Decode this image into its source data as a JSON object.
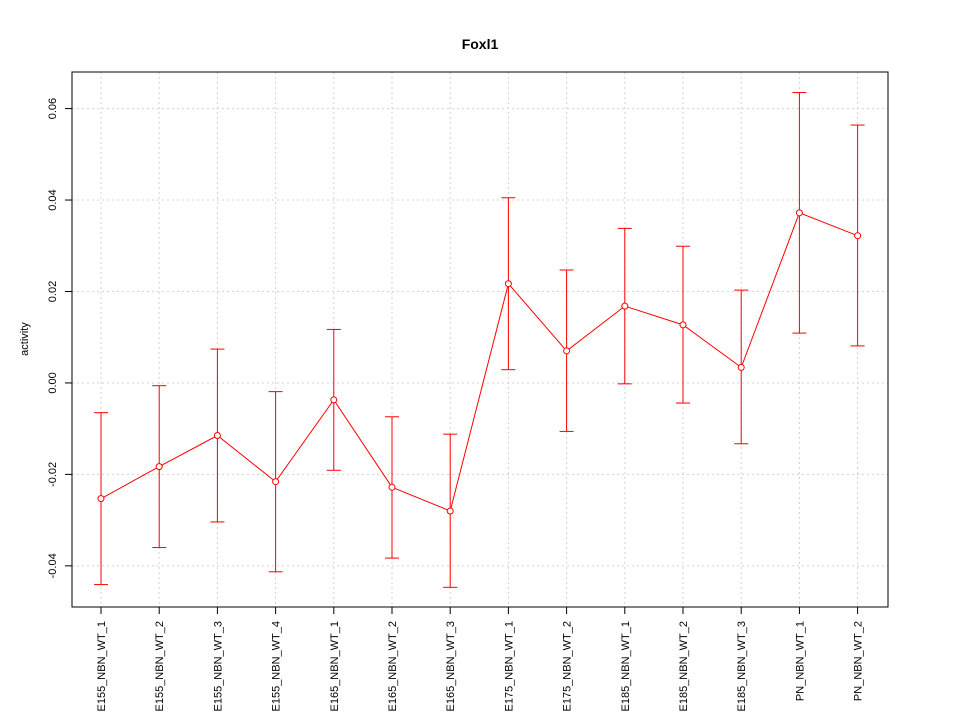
{
  "chart_data": {
    "type": "line",
    "title": "Foxl1",
    "xlabel": "",
    "ylabel": "activity",
    "ylim": [
      -0.049,
      0.068
    ],
    "yticks": [
      -0.04,
      -0.02,
      0.0,
      0.02,
      0.04,
      0.06
    ],
    "ytick_labels": [
      "-0.04",
      "-0.02",
      "0.00",
      "0.02",
      "0.04",
      "0.06"
    ],
    "grid": true,
    "error_bars": true,
    "series_color": "#ff0000",
    "grid_color": "#d3d3d3",
    "categories": [
      "E155_NBN_WT_1",
      "E155_NBN_WT_2",
      "E155_NBN_WT_3",
      "E155_NBN_WT_4",
      "E165_NBN_WT_1",
      "E165_NBN_WT_2",
      "E165_NBN_WT_3",
      "E175_NBN_WT_1",
      "E175_NBN_WT_2",
      "E185_NBN_WT_1",
      "E185_NBN_WT_2",
      "E185_NBN_WT_3",
      "PN_NBN_WT_1",
      "PN_NBN_WT_2"
    ],
    "series": [
      {
        "values": [
          -0.0253,
          -0.0183,
          -0.0115,
          -0.0216,
          -0.0037,
          -0.0228,
          -0.028,
          0.0217,
          0.007,
          0.0168,
          0.0127,
          0.0034,
          0.0372,
          0.0322
        ],
        "upper": [
          -0.0065,
          -0.0006,
          0.0074,
          -0.0019,
          0.0117,
          -0.0074,
          -0.0112,
          0.0405,
          0.0247,
          0.0338,
          0.0299,
          0.0203,
          0.0635,
          0.0564
        ],
        "lower": [
          -0.0441,
          -0.036,
          -0.0304,
          -0.0413,
          -0.0191,
          -0.0383,
          -0.0447,
          0.0029,
          -0.0106,
          -0.0002,
          -0.0044,
          -0.0133,
          0.0109,
          0.0081
        ]
      }
    ]
  }
}
